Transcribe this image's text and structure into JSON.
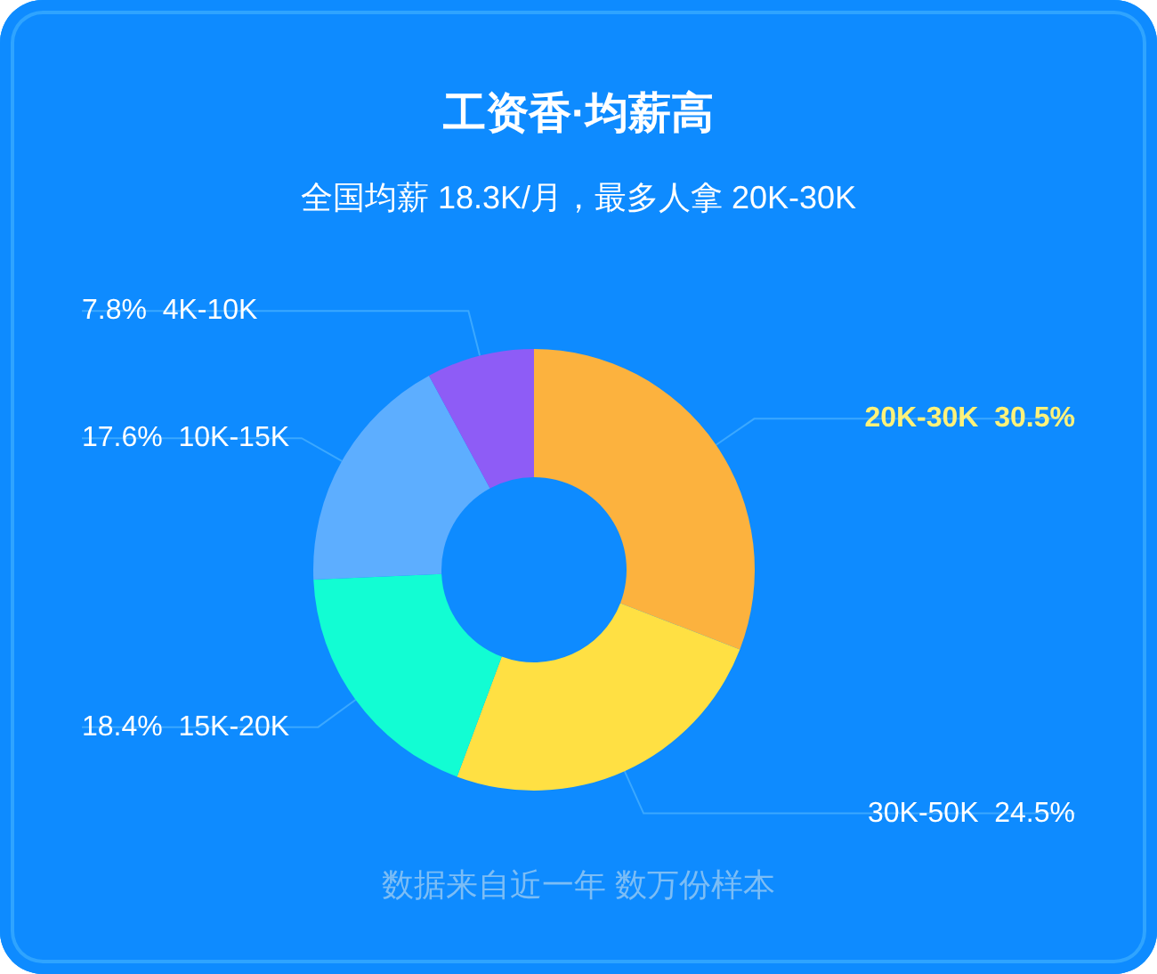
{
  "chart_data": {
    "type": "donut",
    "title": "工资香·均薪高",
    "subtitle": "全国均薪 18.3K/月，最多人拿 20K-30K",
    "categories": [
      "20K-30K",
      "30K-50K",
      "15K-20K",
      "10K-15K",
      "4K-10K"
    ],
    "values": [
      30.5,
      24.5,
      18.4,
      17.6,
      7.8
    ],
    "value_labels": [
      "30.5%",
      "24.5%",
      "18.4%",
      "17.6%",
      "7.8%"
    ],
    "colors": [
      "#fcb23e",
      "#ffe043",
      "#12fdd3",
      "#5daeff",
      "#8e5cf6"
    ],
    "annotations": [
      "数据来自近一年 数万份样本"
    ]
  }
}
